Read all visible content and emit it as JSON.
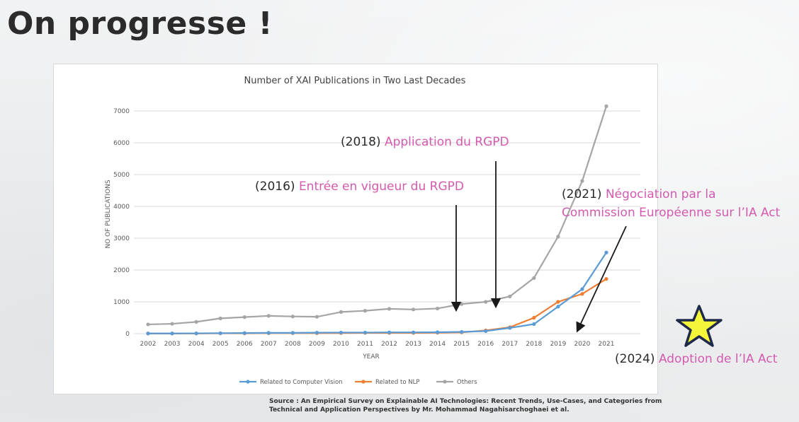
{
  "slide": {
    "title": "On progresse !"
  },
  "annotations": {
    "a2018": {
      "year": "(2018)",
      "text": "Application du RGPD"
    },
    "a2016": {
      "year": "(2016)",
      "text": "Entrée en vigueur du RGPD"
    },
    "a2021": {
      "year": "(2021)",
      "text_line1": "Négociation par la",
      "text_line2": "Commission Européenne sur l’IA Act"
    },
    "a2024": {
      "year": "(2024)",
      "text": "Adoption de l’IA Act"
    }
  },
  "source_text": "Source : An Empirical Survey on Explainable AI Technologies: Recent Trends, Use-Cases, and Categories from Technical and Application Perspectives by Mr. Mohammad Nagahisarchoghaei et al.",
  "colors": {
    "accent": "#d45ab0",
    "cv": "#5b9bd5",
    "nlp": "#ed7d31",
    "others": "#a5a5a5",
    "star_fill": "#f5f53a",
    "star_stroke": "#1f2a4a"
  },
  "icons": {
    "star": "star-icon"
  },
  "chart_data": {
    "type": "line",
    "title": "Number of XAI Publications in Two Last Decades",
    "xlabel": "YEAR",
    "ylabel": "NO OF PUBLICATIONS",
    "ylim": [
      0,
      7000
    ],
    "yticks": [
      0,
      1000,
      2000,
      3000,
      4000,
      5000,
      6000,
      7000
    ],
    "grid": true,
    "legend": "bottom",
    "categories": [
      "2002",
      "2003",
      "2004",
      "2005",
      "2006",
      "2007",
      "2008",
      "2009",
      "2010",
      "2011",
      "2012",
      "2013",
      "2014",
      "2015",
      "2016",
      "2017",
      "2018",
      "2019",
      "2020",
      "2021"
    ],
    "series": [
      {
        "name": "Related to Computer Vision",
        "color": "#5b9bd5",
        "values": [
          5,
          5,
          10,
          15,
          20,
          25,
          25,
          30,
          35,
          35,
          40,
          40,
          45,
          55,
          80,
          180,
          300,
          850,
          1400,
          2550
        ]
      },
      {
        "name": "Related to NLP",
        "color": "#ed7d31",
        "values": [
          5,
          5,
          5,
          10,
          10,
          15,
          15,
          15,
          20,
          25,
          25,
          25,
          30,
          40,
          100,
          200,
          500,
          1000,
          1250,
          1720
        ]
      },
      {
        "name": "Others",
        "color": "#a5a5a5",
        "values": [
          290,
          310,
          370,
          480,
          520,
          560,
          540,
          530,
          680,
          720,
          780,
          760,
          790,
          930,
          1000,
          1170,
          1750,
          3050,
          4800,
          7150
        ]
      }
    ]
  }
}
